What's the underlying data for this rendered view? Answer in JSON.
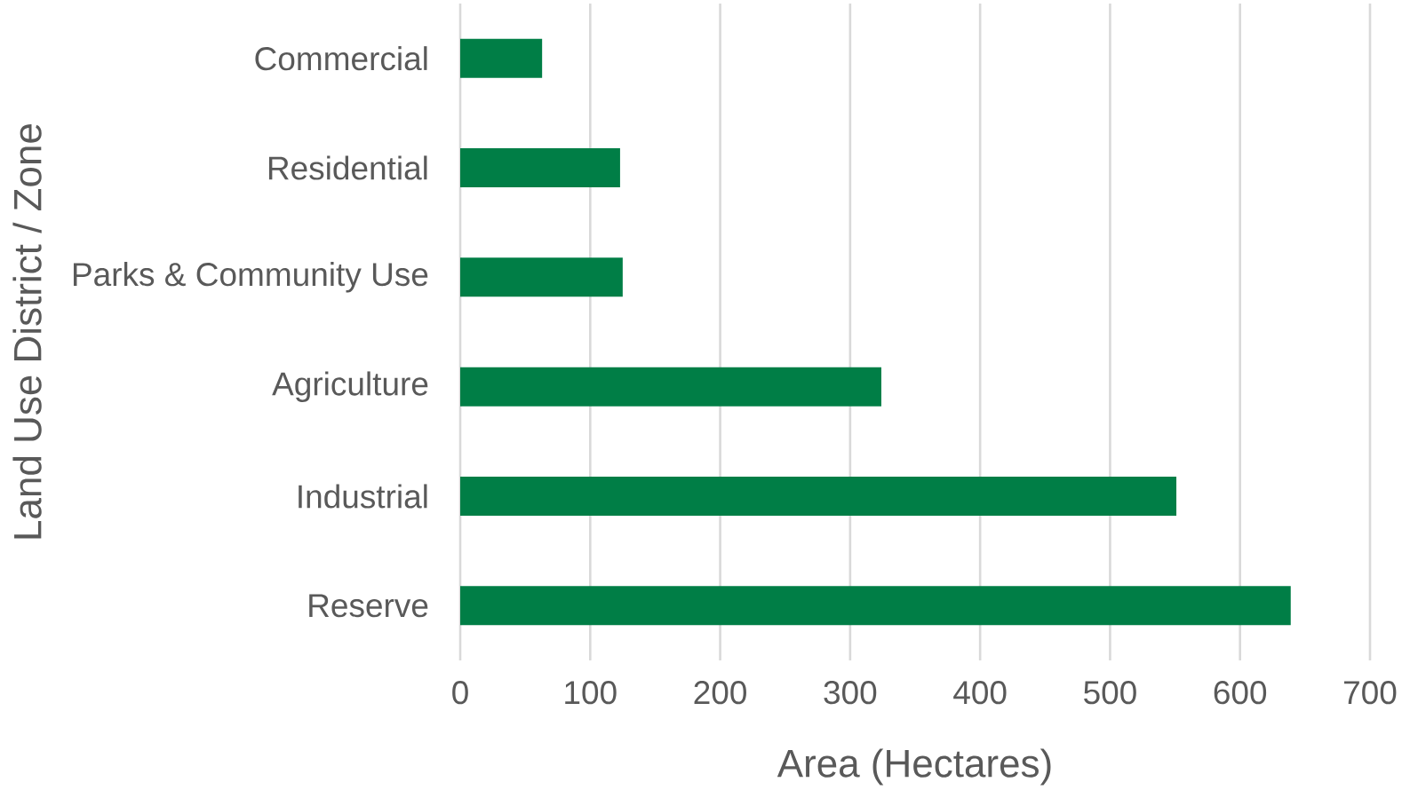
{
  "chart_data": {
    "type": "bar",
    "orientation": "horizontal",
    "xlabel": "Area (Hectares)",
    "ylabel": "Land Use District / Zone",
    "categories": [
      "Commercial",
      "Residential",
      "Parks & Community Use",
      "Agriculture",
      "Industrial",
      "Reserve"
    ],
    "values": [
      63,
      123,
      125,
      324,
      551,
      639
    ],
    "color": "#007e46",
    "xlim": [
      0,
      700
    ],
    "xticks": [
      0,
      100,
      200,
      300,
      400,
      500,
      600,
      700
    ],
    "grid": "x"
  }
}
